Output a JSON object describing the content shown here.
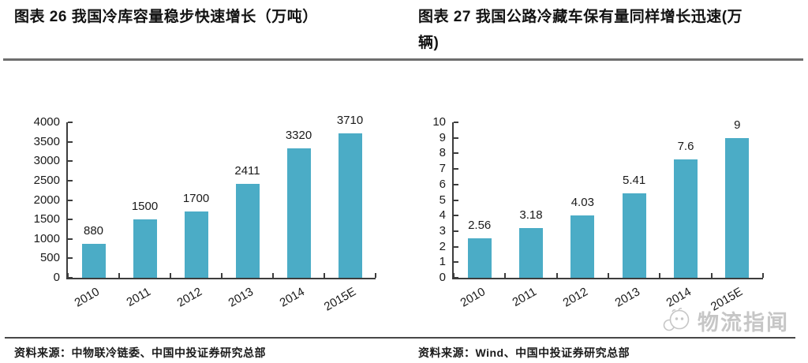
{
  "chart_data": [
    {
      "type": "bar",
      "title": "图表 26 我国冷库容量稳步快速增长（万吨）",
      "categories": [
        "2010",
        "2011",
        "2012",
        "2013",
        "2014",
        "2015E"
      ],
      "values": [
        880,
        1500,
        1700,
        2411,
        3320,
        3710
      ],
      "value_labels": [
        "880",
        "1500",
        "1700",
        "2411",
        "3320",
        "3710"
      ],
      "ylim": [
        0,
        4000
      ],
      "ytick_step": 500,
      "xlabel": "",
      "ylabel": "",
      "grid": false,
      "legend": "none",
      "bar_color": "#4BACC6",
      "source": "资料来源：中物联冷链委、中国中投证券研究总部"
    },
    {
      "type": "bar",
      "title": "图表 27 我国公路冷藏车保有量同样增长迅速(万辆)",
      "categories": [
        "2010",
        "2011",
        "2012",
        "2013",
        "2014",
        "2015E"
      ],
      "values": [
        2.56,
        3.18,
        4.03,
        5.41,
        7.6,
        9
      ],
      "value_labels": [
        "2.56",
        "3.18",
        "4.03",
        "5.41",
        "7.6",
        "9"
      ],
      "ylim": [
        0,
        10
      ],
      "ytick_step": 1,
      "xlabel": "",
      "ylabel": "",
      "grid": false,
      "legend": "none",
      "bar_color": "#4BACC6",
      "source": "资料来源：Wind、中国中投证券研究总部"
    }
  ],
  "watermark": {
    "text": "物流指闻",
    "color": "#c6c6c6"
  },
  "colors": {
    "bar": "#4BACC6",
    "axis": "#3d3d3d",
    "divider": "#6e6e6e",
    "text": "#1a1a1a"
  }
}
